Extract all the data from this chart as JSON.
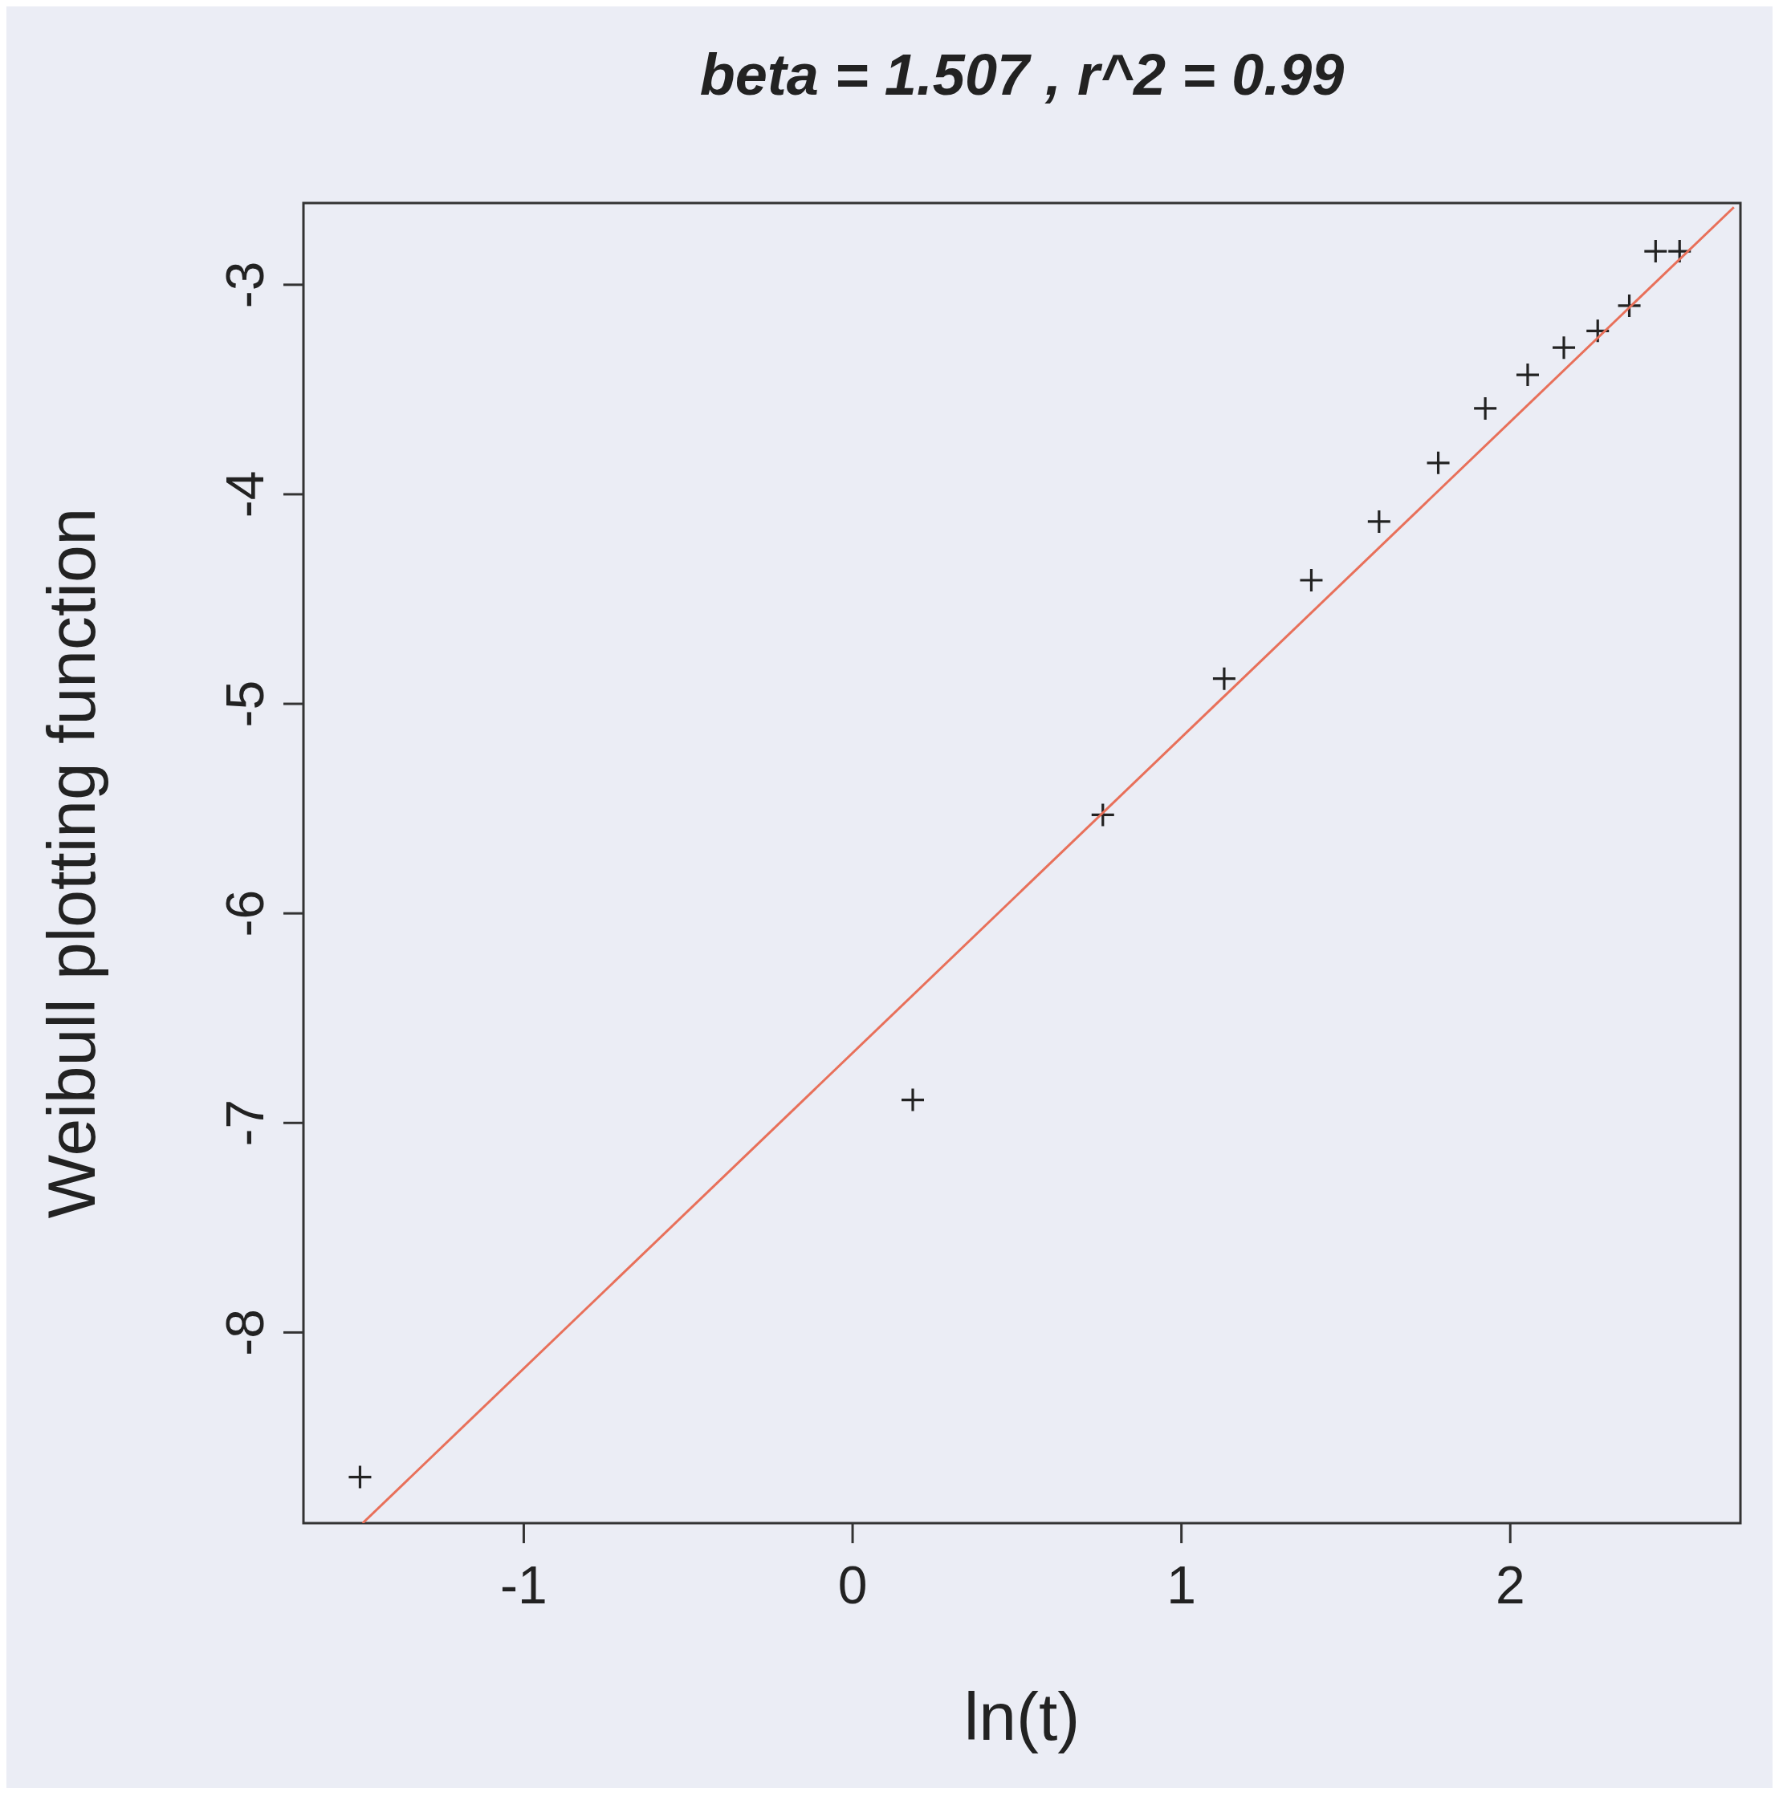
{
  "chart_data": {
    "type": "scatter",
    "title": "beta = 1.507 , r^2 = 0.99",
    "xlabel": "ln(t)",
    "ylabel": "Weibull plotting function",
    "xlim": [
      -1.67,
      2.7
    ],
    "ylim": [
      -8.91,
      -2.61
    ],
    "xticks": [
      -1,
      0,
      1,
      2
    ],
    "yticks": [
      -8,
      -7,
      -6,
      -5,
      -4,
      -3
    ],
    "grid": false,
    "marker": "cross",
    "series": [
      {
        "color": "#222222",
        "x": [
          -1.498,
          0.183,
          0.761,
          1.13,
          1.395,
          1.601,
          1.781,
          1.924,
          2.053,
          2.163,
          2.266,
          2.362,
          2.442,
          2.515
        ],
        "values": [
          -8.69,
          -6.89,
          -5.53,
          -4.88,
          -4.41,
          -4.13,
          -3.85,
          -3.59,
          -3.43,
          -3.3,
          -3.22,
          -3.1,
          -2.84,
          -2.84
        ]
      },
      {
        "type": "line",
        "color": "#e8705a",
        "line_style": "solid",
        "marker": "none",
        "x": [
          -1.49,
          2.68
        ],
        "values": [
          -8.91,
          -2.63
        ]
      }
    ]
  }
}
